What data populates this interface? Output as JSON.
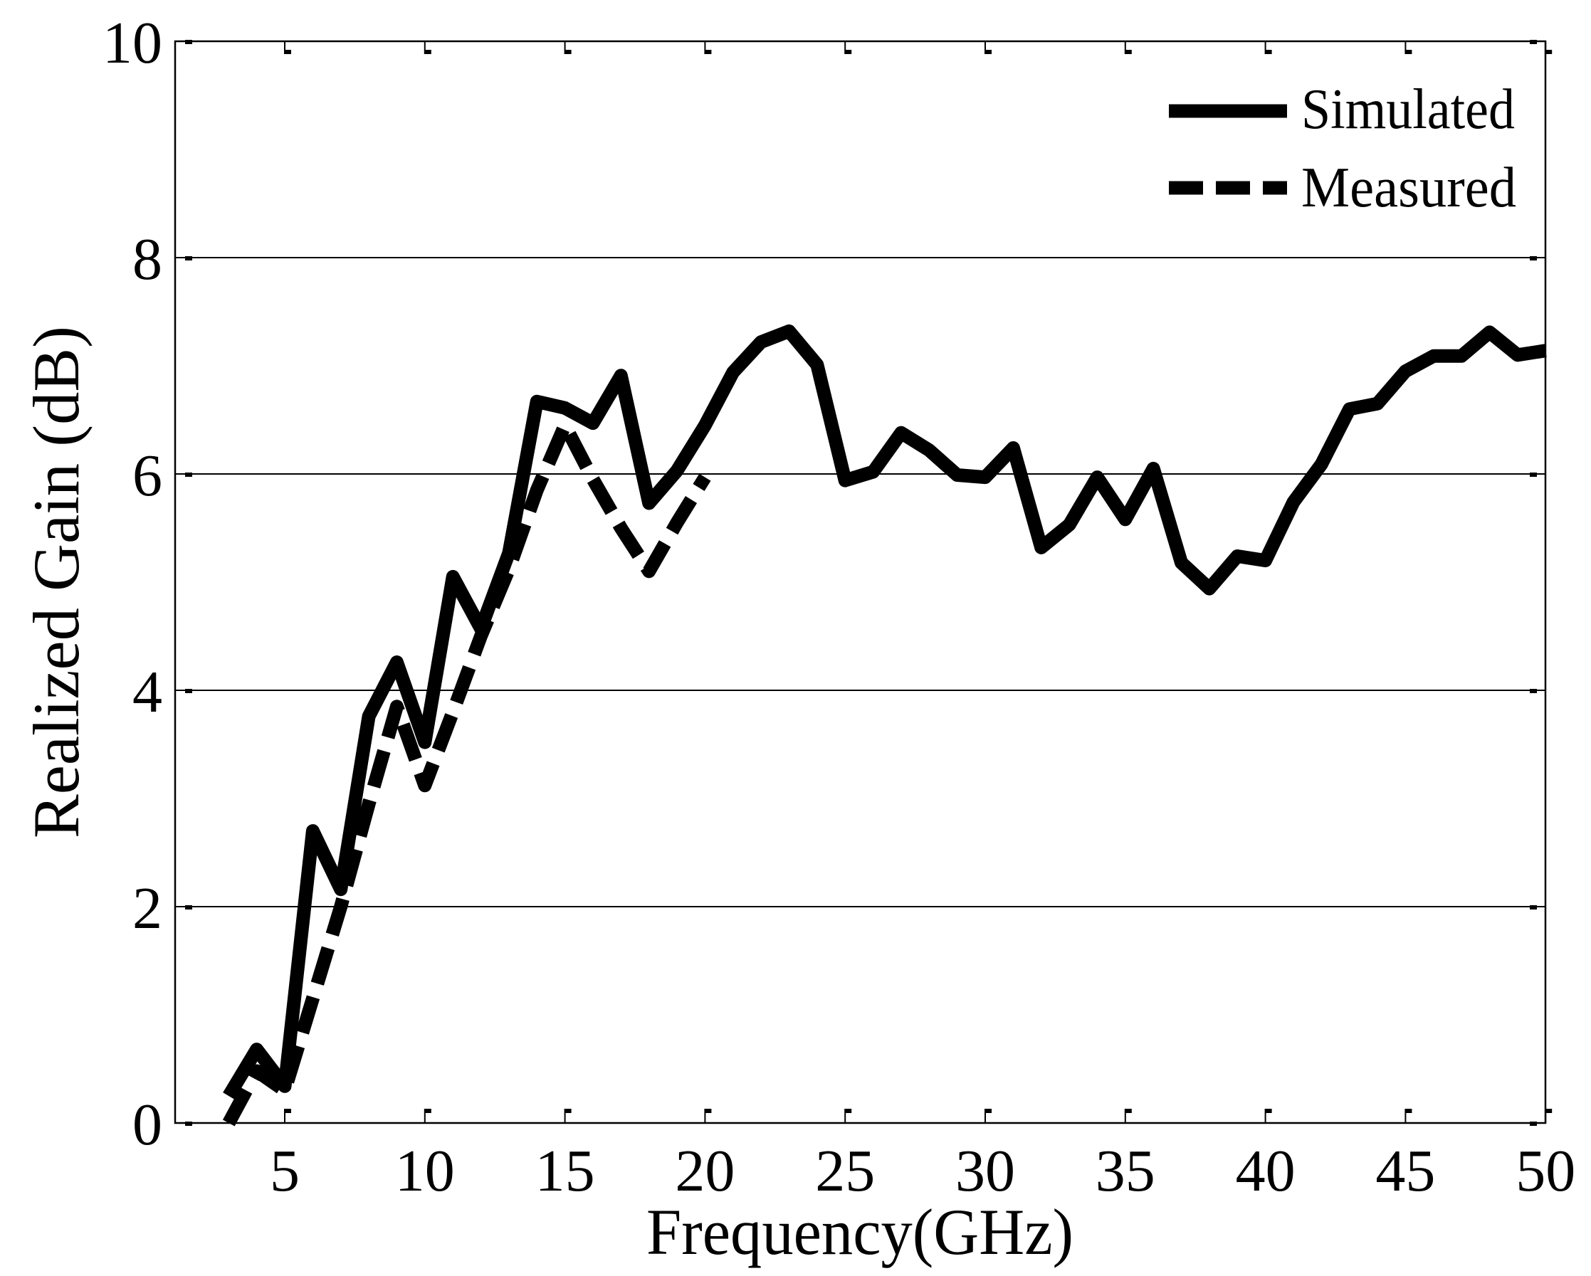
{
  "chart_data": {
    "type": "line",
    "title": "",
    "xlabel": "Frequency(GHz)",
    "ylabel": "Realized Gain (dB)",
    "xlim": [
      1,
      50
    ],
    "ylim": [
      0,
      10
    ],
    "xticks": [
      5,
      10,
      15,
      20,
      25,
      30,
      35,
      40,
      45,
      50
    ],
    "yticks": [
      0,
      2,
      4,
      6,
      8,
      10
    ],
    "grid": "horizontal",
    "legend_position": "upper right",
    "series": [
      {
        "name": "Simulated",
        "style": "solid",
        "color": "#000000",
        "x": [
          3,
          4,
          5,
          6,
          7,
          8,
          9,
          10,
          11,
          12,
          13,
          14,
          15,
          16,
          17,
          18,
          19,
          20,
          21,
          22,
          23,
          24,
          25,
          26,
          27,
          28,
          29,
          30,
          31,
          32,
          33,
          34,
          35,
          36,
          37,
          38,
          39,
          40,
          41,
          42,
          43,
          44,
          45,
          46,
          47,
          48,
          49,
          50
        ],
        "values": [
          0.25,
          0.68,
          0.34,
          2.7,
          2.16,
          3.76,
          4.26,
          3.52,
          5.05,
          4.57,
          5.27,
          6.67,
          6.61,
          6.47,
          6.91,
          5.73,
          6.03,
          6.45,
          6.94,
          7.22,
          7.32,
          7.01,
          5.94,
          6.02,
          6.38,
          6.22,
          5.99,
          5.97,
          6.24,
          5.32,
          5.53,
          5.97,
          5.58,
          6.05,
          5.18,
          4.94,
          5.24,
          5.2,
          5.74,
          6.09,
          6.6,
          6.65,
          6.95,
          7.09,
          7.09,
          7.31,
          7.1,
          7.14
        ]
      },
      {
        "name": "Measured",
        "style": "dashed",
        "color": "#000000",
        "x": [
          3,
          4,
          5,
          6,
          7,
          8,
          9,
          10,
          11,
          12,
          13,
          14,
          15,
          16,
          17,
          18,
          19,
          20
        ],
        "values": [
          0.0,
          0.48,
          0.3,
          1.15,
          2.0,
          2.95,
          3.85,
          3.12,
          3.8,
          4.5,
          5.12,
          5.85,
          6.45,
          5.95,
          5.5,
          5.1,
          5.55,
          5.97
        ]
      }
    ]
  },
  "legend": {
    "items": [
      {
        "label": "Simulated",
        "style": "solid"
      },
      {
        "label": "Measured",
        "style": "dashed"
      }
    ]
  },
  "axes": {
    "x_tick_labels": [
      "5",
      "10",
      "15",
      "20",
      "25",
      "30",
      "35",
      "40",
      "45",
      "50"
    ],
    "y_tick_labels": [
      "0",
      "2",
      "4",
      "6",
      "8",
      "10"
    ]
  }
}
